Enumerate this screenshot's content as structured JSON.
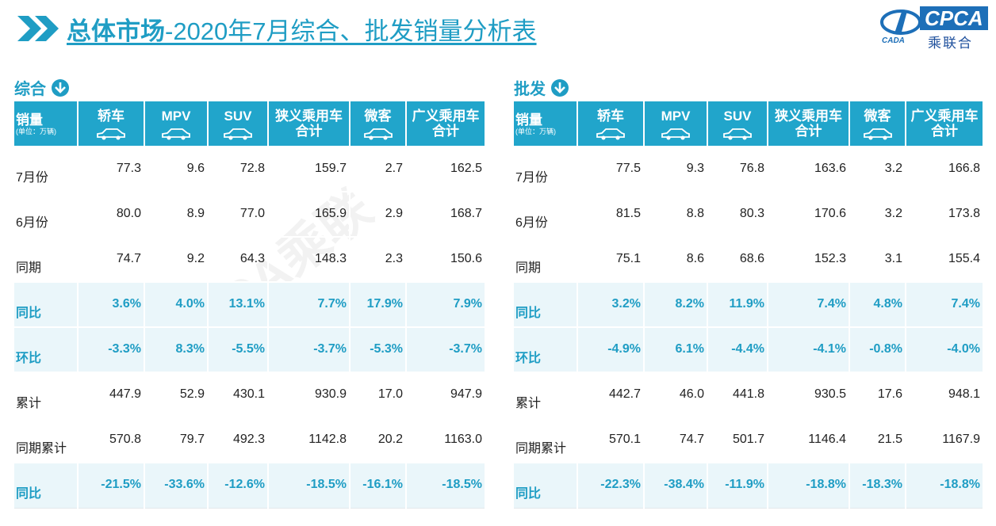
{
  "header": {
    "title_bold": "总体市场",
    "title_rest": "-2020年7月综合、批发销量分析表",
    "logo_text": "CPCA",
    "logo_sub": "乘联合",
    "logo_small": "CADA"
  },
  "watermark": "CPCA乘联",
  "tables": [
    {
      "label": "综合",
      "corner": "销量",
      "unit": "(单位：万辆)",
      "columns": [
        [
          "轿车"
        ],
        [
          "MPV"
        ],
        [
          "SUV"
        ],
        [
          "狭义乘用车",
          "合计"
        ],
        [
          "微客"
        ],
        [
          "广义乘用车",
          "合计"
        ]
      ],
      "rows": [
        {
          "label": "7月份",
          "emphasis": false,
          "cells": [
            "77.3",
            "9.6",
            "72.8",
            "159.7",
            "2.7",
            "162.5"
          ]
        },
        {
          "label": "6月份",
          "emphasis": false,
          "cells": [
            "80.0",
            "8.9",
            "77.0",
            "165.9",
            "2.9",
            "168.7"
          ]
        },
        {
          "label": "同期",
          "emphasis": false,
          "cells": [
            "74.7",
            "9.2",
            "64.3",
            "148.3",
            "2.3",
            "150.6"
          ]
        },
        {
          "label": "同比",
          "emphasis": true,
          "cells": [
            "3.6%",
            "4.0%",
            "13.1%",
            "7.7%",
            "17.9%",
            "7.9%"
          ]
        },
        {
          "label": "环比",
          "emphasis": true,
          "cells": [
            "-3.3%",
            "8.3%",
            "-5.5%",
            "-3.7%",
            "-5.3%",
            "-3.7%"
          ]
        },
        {
          "label": "累计",
          "emphasis": false,
          "cells": [
            "447.9",
            "52.9",
            "430.1",
            "930.9",
            "17.0",
            "947.9"
          ]
        },
        {
          "label": "同期累计",
          "emphasis": false,
          "cells": [
            "570.8",
            "79.7",
            "492.3",
            "1142.8",
            "20.2",
            "1163.0"
          ]
        },
        {
          "label": "同比",
          "emphasis": true,
          "cells": [
            "-21.5%",
            "-33.6%",
            "-12.6%",
            "-18.5%",
            "-16.1%",
            "-18.5%"
          ]
        }
      ]
    },
    {
      "label": "批发",
      "corner": "销量",
      "unit": "(单位：万辆)",
      "columns": [
        [
          "轿车"
        ],
        [
          "MPV"
        ],
        [
          "SUV"
        ],
        [
          "狭义乘用车",
          "合计"
        ],
        [
          "微客"
        ],
        [
          "广义乘用车",
          "合计"
        ]
      ],
      "rows": [
        {
          "label": "7月份",
          "emphasis": false,
          "cells": [
            "77.5",
            "9.3",
            "76.8",
            "163.6",
            "3.2",
            "166.8"
          ]
        },
        {
          "label": "6月份",
          "emphasis": false,
          "cells": [
            "81.5",
            "8.8",
            "80.3",
            "170.6",
            "3.2",
            "173.8"
          ]
        },
        {
          "label": "同期",
          "emphasis": false,
          "cells": [
            "75.1",
            "8.6",
            "68.6",
            "152.3",
            "3.1",
            "155.4"
          ]
        },
        {
          "label": "同比",
          "emphasis": true,
          "cells": [
            "3.2%",
            "8.2%",
            "11.9%",
            "7.4%",
            "4.8%",
            "7.4%"
          ]
        },
        {
          "label": "环比",
          "emphasis": true,
          "cells": [
            "-4.9%",
            "6.1%",
            "-4.4%",
            "-4.1%",
            "-0.8%",
            "-4.0%"
          ]
        },
        {
          "label": "累计",
          "emphasis": false,
          "cells": [
            "442.7",
            "46.0",
            "441.8",
            "930.5",
            "17.6",
            "948.1"
          ]
        },
        {
          "label": "同期累计",
          "emphasis": false,
          "cells": [
            "570.1",
            "74.7",
            "501.7",
            "1146.4",
            "21.5",
            "1167.9"
          ]
        },
        {
          "label": "同比",
          "emphasis": true,
          "cells": [
            "-22.3%",
            "-38.4%",
            "-11.9%",
            "-18.8%",
            "-18.3%",
            "-18.8%"
          ]
        }
      ]
    }
  ]
}
